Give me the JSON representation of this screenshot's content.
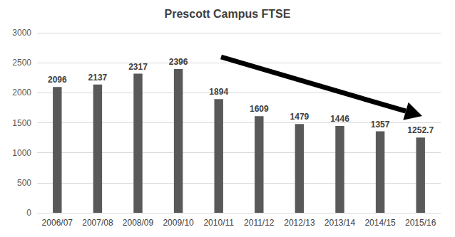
{
  "chart_data": {
    "type": "bar",
    "title": "Prescott Campus FTSE",
    "categories": [
      "2006/07",
      "2007/08",
      "2008/09",
      "2009/10",
      "2010/11",
      "2011/12",
      "2012/13",
      "2013/14",
      "2014/15",
      "2015/16"
    ],
    "values": [
      2096,
      2137,
      2317,
      2396,
      1894,
      1609,
      1479,
      1446,
      1357,
      1252.7
    ],
    "color": "#595959",
    "ylim": [
      0,
      3000
    ],
    "yticks": [
      0,
      500,
      1000,
      1500,
      2000,
      2500,
      3000
    ],
    "grid": true,
    "data_labels": true
  }
}
